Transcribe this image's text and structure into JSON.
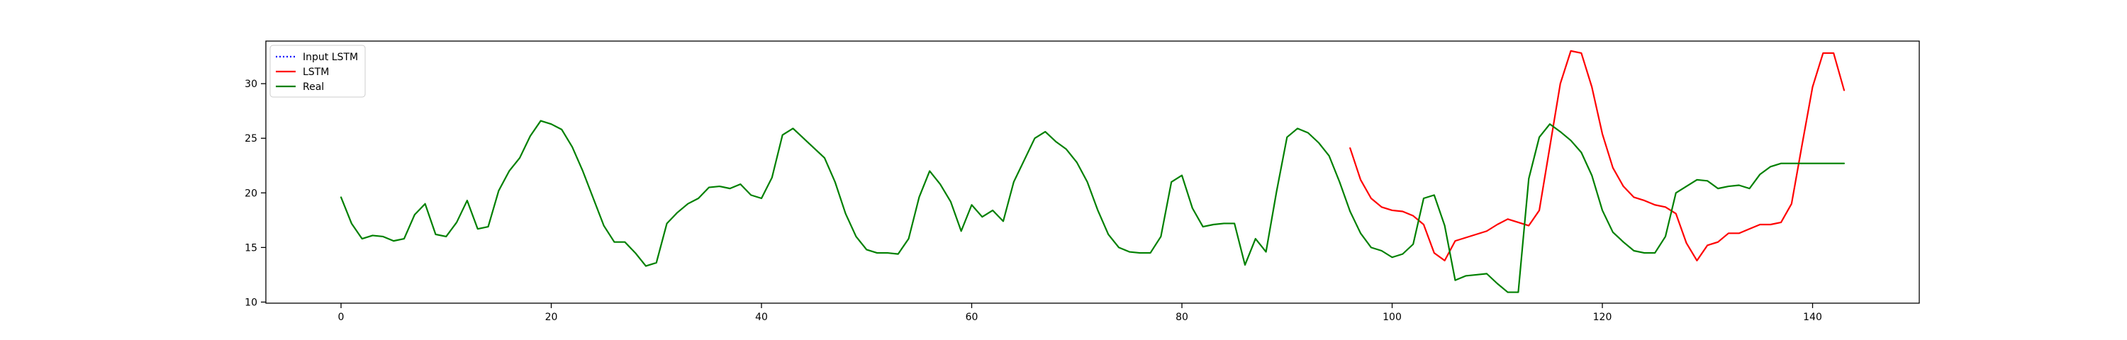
{
  "chart_data": {
    "type": "line",
    "title": "",
    "xlabel": "",
    "ylabel": "",
    "xlim": [
      -7.15,
      150.15
    ],
    "ylim": [
      9.9,
      33.9
    ],
    "xticks": [
      0,
      20,
      40,
      60,
      80,
      100,
      120,
      140
    ],
    "yticks": [
      10,
      15,
      20,
      25,
      30
    ],
    "grid": false,
    "legend": {
      "position": "upper-left",
      "entries": [
        "Input LSTM",
        "LSTM",
        "Real"
      ]
    },
    "series": [
      {
        "name": "Input LSTM",
        "color": "#0000ff",
        "style": "dotted",
        "x": [],
        "y": []
      },
      {
        "name": "LSTM",
        "color": "#ff0000",
        "style": "solid",
        "x": [
          96,
          97,
          98,
          99,
          100,
          101,
          102,
          103,
          104,
          105,
          106,
          107,
          108,
          109,
          110,
          111,
          112,
          113,
          114,
          115,
          116,
          117,
          118,
          119,
          120,
          121,
          122,
          123,
          124,
          125,
          126,
          127,
          128,
          129,
          130,
          131,
          132,
          133,
          134,
          135,
          136,
          137,
          138,
          139,
          140,
          141,
          142,
          143
        ],
        "y": [
          24.1,
          21.2,
          19.5,
          18.7,
          18.4,
          18.3,
          17.9,
          17.1,
          14.5,
          13.8,
          15.6,
          15.9,
          16.2,
          16.5,
          17.1,
          17.6,
          17.3,
          17.0,
          18.4,
          24.2,
          30.0,
          33.0,
          32.8,
          29.7,
          25.4,
          22.3,
          20.6,
          19.6,
          19.3,
          18.9,
          18.7,
          18.1,
          15.4,
          13.8,
          15.2,
          15.5,
          16.3,
          16.3,
          16.7,
          17.1,
          17.1,
          17.3,
          19.0,
          24.4,
          29.7,
          32.8,
          32.8,
          29.4
        ]
      },
      {
        "name": "Real",
        "color": "#008000",
        "style": "solid",
        "x": [
          0,
          1,
          2,
          3,
          4,
          5,
          6,
          7,
          8,
          9,
          10,
          11,
          12,
          13,
          14,
          15,
          16,
          17,
          18,
          19,
          20,
          21,
          22,
          23,
          24,
          25,
          26,
          27,
          28,
          29,
          30,
          31,
          32,
          33,
          34,
          35,
          36,
          37,
          38,
          39,
          40,
          41,
          42,
          43,
          44,
          45,
          46,
          47,
          48,
          49,
          50,
          51,
          52,
          53,
          54,
          55,
          56,
          57,
          58,
          59,
          60,
          61,
          62,
          63,
          64,
          65,
          66,
          67,
          68,
          69,
          70,
          71,
          72,
          73,
          74,
          75,
          76,
          77,
          78,
          79,
          80,
          81,
          82,
          83,
          84,
          85,
          86,
          87,
          88,
          89,
          90,
          91,
          92,
          93,
          94,
          95,
          96,
          97,
          98,
          99,
          100,
          101,
          102,
          103,
          104,
          105,
          106,
          107,
          108,
          109,
          110,
          111,
          112,
          113,
          114,
          115,
          116,
          117,
          118,
          119,
          120,
          121,
          122,
          123,
          124,
          125,
          126,
          127,
          128,
          129,
          130,
          131,
          132,
          133,
          134,
          135,
          136,
          137,
          138,
          139,
          140,
          141,
          142,
          143
        ],
        "y": [
          19.6,
          17.2,
          15.8,
          16.1,
          16.0,
          15.6,
          15.8,
          18.0,
          19.0,
          16.2,
          16.0,
          17.3,
          19.3,
          16.7,
          16.9,
          20.2,
          22.0,
          23.2,
          25.2,
          26.6,
          26.3,
          25.8,
          24.2,
          22.0,
          19.5,
          17.0,
          15.5,
          15.5,
          14.5,
          13.3,
          13.6,
          17.2,
          18.2,
          19.0,
          19.5,
          20.5,
          20.6,
          20.4,
          20.8,
          19.8,
          19.5,
          21.4,
          25.3,
          25.9,
          25.0,
          24.1,
          23.2,
          21.0,
          18.1,
          16.0,
          14.8,
          14.5,
          14.5,
          14.4,
          15.8,
          19.6,
          22.0,
          20.8,
          19.2,
          16.5,
          18.9,
          17.8,
          18.4,
          17.4,
          21.0,
          23.0,
          25.0,
          25.6,
          24.7,
          24.0,
          22.8,
          21.0,
          18.4,
          16.2,
          15.0,
          14.6,
          14.5,
          14.5,
          16.0,
          21.0,
          21.6,
          18.6,
          16.9,
          17.1,
          17.2,
          17.2,
          13.4,
          15.8,
          14.6,
          20.1,
          25.1,
          25.9,
          25.5,
          24.6,
          23.4,
          21.0,
          18.3,
          16.3,
          15.0,
          14.7,
          14.1,
          14.4,
          15.3,
          19.5,
          19.8,
          17.0,
          12.0,
          12.4,
          12.5,
          12.6,
          11.7,
          10.9,
          10.9,
          21.3,
          25.1,
          26.3,
          25.6,
          24.8,
          23.7,
          21.6,
          18.4,
          16.4,
          15.5,
          14.7,
          14.5,
          14.5,
          16.0,
          20.0,
          20.6,
          21.2,
          21.1,
          20.4,
          20.6,
          20.7,
          20.4,
          21.7,
          22.4,
          22.7,
          22.7,
          22.7,
          22.7,
          22.7,
          22.7,
          22.7
        ]
      }
    ]
  }
}
